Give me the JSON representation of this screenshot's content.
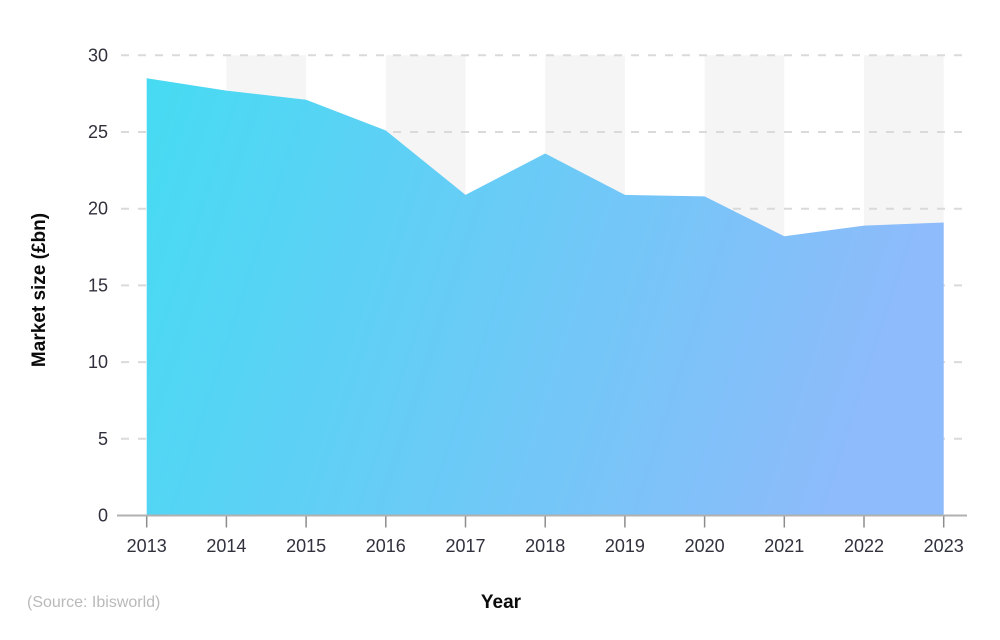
{
  "page": {
    "background": "#ffffff"
  },
  "chart_data": {
    "type": "area",
    "x": [
      "2013",
      "2014",
      "2015",
      "2016",
      "2017",
      "2018",
      "2019",
      "2020",
      "2021",
      "2022",
      "2023"
    ],
    "values": [
      28.5,
      27.7,
      27.1,
      25.1,
      20.9,
      23.6,
      20.9,
      20.8,
      18.2,
      18.9,
      19.1
    ],
    "title": "",
    "xlabel": "Year",
    "ylabel": "Market size (£bn)",
    "ylim": [
      0,
      30
    ],
    "yticks": [
      0,
      5,
      10,
      15,
      20,
      25,
      30
    ],
    "grid": "horizontal dashed",
    "legend": "none",
    "background_stripes": "alternating vertical year bands",
    "source": "(Source: Ibisworld)",
    "colors": {
      "gradient_start": "#46dbf2",
      "gradient_end": "#8dbbfb",
      "stripe": "#f5f5f5",
      "gridline": "#dadada",
      "axis_line": "#b0b0b0",
      "tick": "#8c8c8c",
      "tick_label": "#31313d",
      "axis_title": "#0b0b0b",
      "source_text": "#b9b9b9"
    }
  }
}
